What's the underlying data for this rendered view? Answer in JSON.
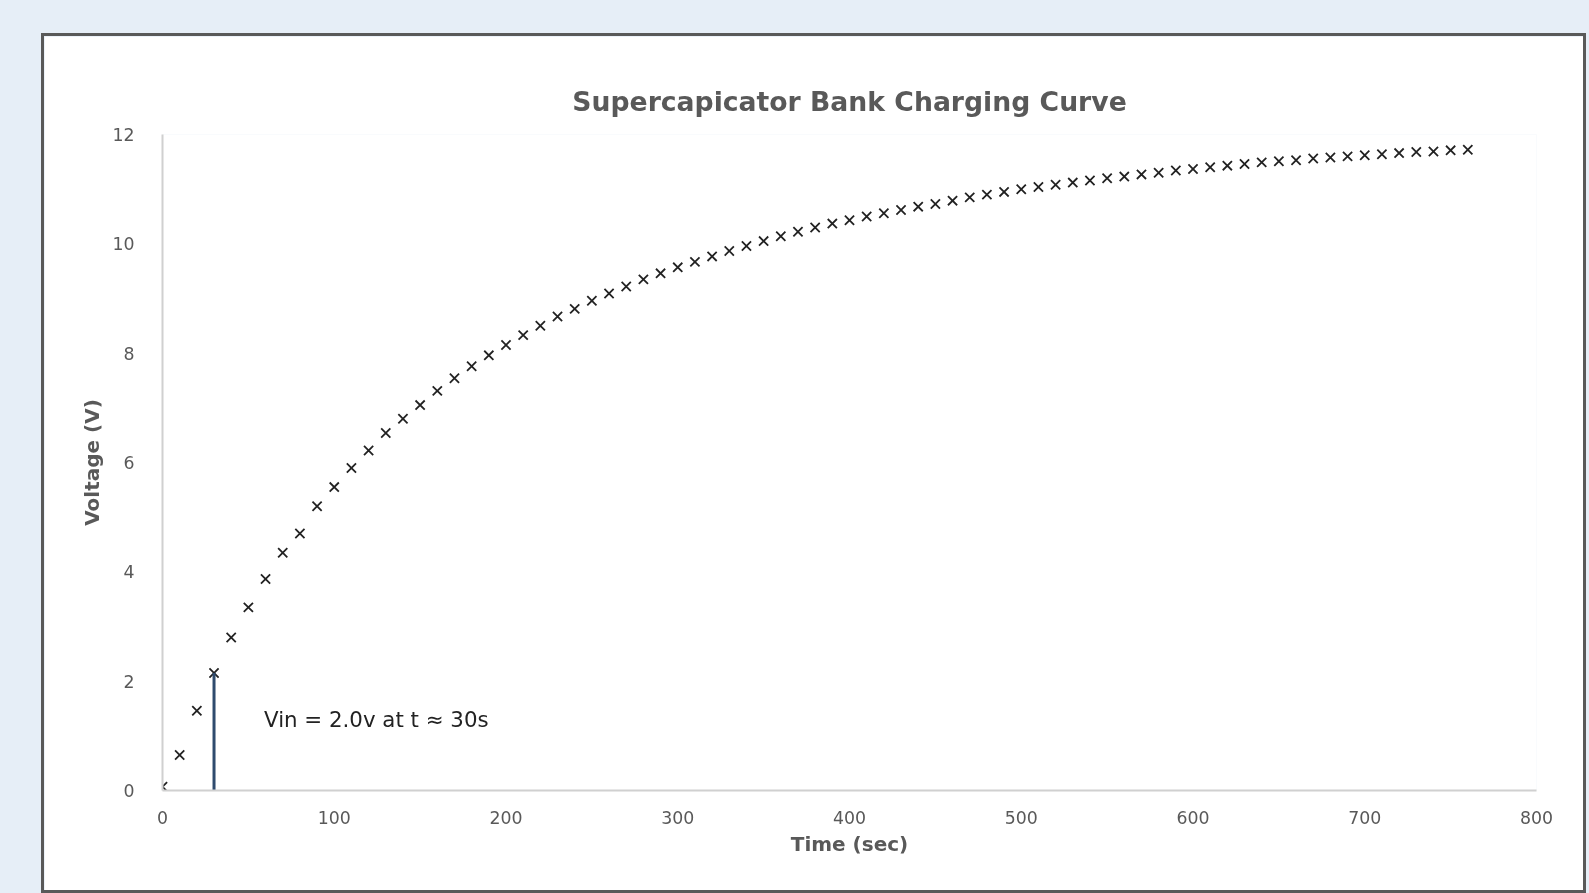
{
  "chart_data": {
    "type": "scatter",
    "title": "Supercapicator Bank Charging Curve",
    "xlabel": "Time (sec)",
    "ylabel": "Voltage (V)",
    "x": [
      0,
      10,
      20,
      30,
      40,
      50,
      60,
      70,
      80,
      90,
      100,
      110,
      120,
      130,
      140,
      150,
      160,
      170,
      180,
      190,
      200,
      210,
      220,
      230,
      240,
      250,
      260,
      270,
      280,
      290,
      300,
      310,
      320,
      330,
      340,
      350,
      360,
      370,
      380,
      390,
      400,
      410,
      420,
      430,
      440,
      450,
      460,
      470,
      480,
      490,
      500,
      510,
      520,
      530,
      540,
      550,
      560,
      570,
      580,
      590,
      600,
      610,
      620,
      630,
      640,
      650,
      660,
      670,
      680,
      690,
      700,
      710,
      720,
      730,
      740,
      750,
      760
    ],
    "series": [
      {
        "color": "#222222",
        "marker": "cross",
        "values": [
          0.07,
          0.65,
          1.46,
          2.15,
          2.8,
          3.35,
          3.87,
          4.35,
          4.7,
          5.2,
          5.55,
          5.9,
          6.22,
          6.54,
          6.8,
          7.05,
          7.31,
          7.54,
          7.76,
          7.96,
          8.15,
          8.33,
          8.5,
          8.67,
          8.81,
          8.96,
          9.09,
          9.22,
          9.35,
          9.46,
          9.57,
          9.67,
          9.77,
          9.87,
          9.96,
          10.05,
          10.14,
          10.22,
          10.3,
          10.37,
          10.43,
          10.5,
          10.56,
          10.62,
          10.68,
          10.73,
          10.79,
          10.85,
          10.9,
          10.95,
          11.0,
          11.04,
          11.08,
          11.12,
          11.16,
          11.2,
          11.23,
          11.27,
          11.3,
          11.34,
          11.37,
          11.4,
          11.43,
          11.46,
          11.49,
          11.51,
          11.53,
          11.56,
          11.58,
          11.6,
          11.62,
          11.64,
          11.66,
          11.68,
          11.69,
          11.71,
          11.72
        ]
      },
      {
        "type": "line",
        "marker": "none",
        "color": "#2f4b6e",
        "x": [
          30,
          30
        ],
        "values": [
          0,
          2.15
        ]
      }
    ],
    "annotations": [
      {
        "text": "Vin = 2.0v at t ≈ 30s",
        "x": 30,
        "y": 2.15
      }
    ],
    "xlim": [
      0,
      800
    ],
    "ylim": [
      0,
      12
    ],
    "xticks": [
      0,
      100,
      200,
      300,
      400,
      500,
      600,
      700,
      800
    ],
    "yticks": [
      0,
      2,
      4,
      6,
      8,
      10,
      12
    ],
    "grid": false
  }
}
